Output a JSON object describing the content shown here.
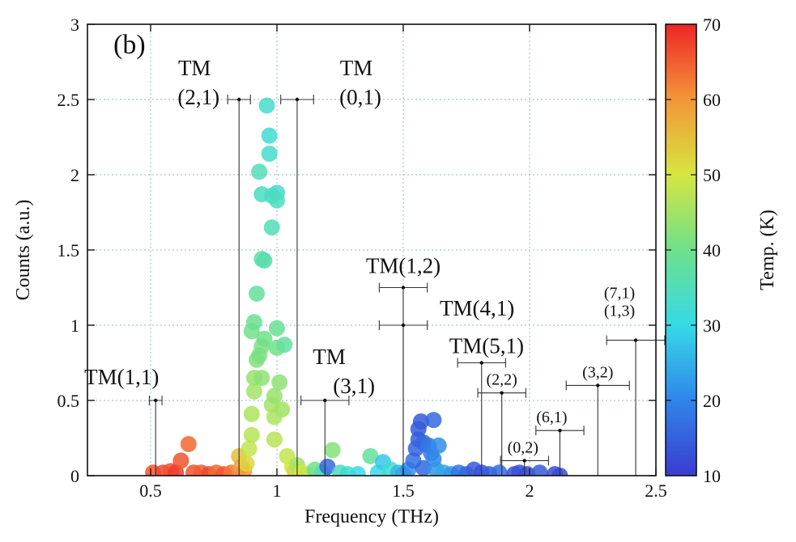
{
  "chart_data": {
    "type": "scatter",
    "panel_label": "(b)",
    "xlabel": "Frequency (THz)",
    "ylabel": "Counts (a.u.)",
    "xlim": [
      0.25,
      2.5
    ],
    "ylim": [
      0,
      3
    ],
    "grid": true,
    "x_ticks": [
      {
        "value": 0.5,
        "label": "0.5"
      },
      {
        "value": 1,
        "label": "1"
      },
      {
        "value": 1.5,
        "label": "1.5"
      },
      {
        "value": 2,
        "label": "2"
      },
      {
        "value": 2.5,
        "label": "2.5"
      }
    ],
    "y_ticks": [
      {
        "value": 0,
        "label": "0"
      },
      {
        "value": 0.5,
        "label": "0.5"
      },
      {
        "value": 1,
        "label": "1"
      },
      {
        "value": 1.5,
        "label": "1.5"
      },
      {
        "value": 2,
        "label": "2"
      },
      {
        "value": 2.5,
        "label": "2.5"
      },
      {
        "value": 3,
        "label": "3"
      }
    ],
    "colorbar": {
      "label": "Temp. (K)",
      "min": 10,
      "max": 70,
      "ticks": [
        {
          "value": 10,
          "label": "10"
        },
        {
          "value": 20,
          "label": "20"
        },
        {
          "value": 30,
          "label": "30"
        },
        {
          "value": 40,
          "label": "40"
        },
        {
          "value": 50,
          "label": "50"
        },
        {
          "value": 60,
          "label": "60"
        },
        {
          "value": 70,
          "label": "70"
        }
      ]
    },
    "points": [
      [
        0.51,
        0.02,
        66
      ],
      [
        0.55,
        0.02,
        67
      ],
      [
        0.58,
        0.03,
        66
      ],
      [
        0.6,
        0.02,
        68
      ],
      [
        0.62,
        0.1,
        66
      ],
      [
        0.65,
        0.21,
        64
      ],
      [
        0.67,
        0.02,
        66
      ],
      [
        0.7,
        0.02,
        65
      ],
      [
        0.73,
        0.01,
        67
      ],
      [
        0.76,
        0.02,
        64
      ],
      [
        0.79,
        0.01,
        66
      ],
      [
        0.82,
        0.02,
        63
      ],
      [
        0.85,
        0.13,
        55
      ],
      [
        0.86,
        0.06,
        58
      ],
      [
        0.87,
        0.03,
        60
      ],
      [
        0.88,
        0.08,
        52
      ],
      [
        0.89,
        0.18,
        48
      ],
      [
        0.9,
        0.27,
        47
      ],
      [
        0.9,
        0.41,
        46
      ],
      [
        0.91,
        0.56,
        45
      ],
      [
        0.91,
        0.65,
        44
      ],
      [
        0.9,
        0.96,
        40
      ],
      [
        0.91,
        1.02,
        39
      ],
      [
        0.92,
        1.21,
        38
      ],
      [
        0.92,
        0.77,
        42
      ],
      [
        0.93,
        0.8,
        41
      ],
      [
        0.94,
        0.65,
        43
      ],
      [
        0.94,
        0.86,
        41
      ],
      [
        0.94,
        1.44,
        37
      ],
      [
        0.93,
        2.02,
        35
      ],
      [
        0.94,
        1.87,
        34
      ],
      [
        0.95,
        0.91,
        40
      ],
      [
        0.95,
        1.43,
        36
      ],
      [
        0.96,
        2.46,
        33
      ],
      [
        0.97,
        2.26,
        32
      ],
      [
        0.97,
        2.14,
        33
      ],
      [
        0.98,
        1.86,
        34
      ],
      [
        0.98,
        1.65,
        35
      ],
      [
        0.98,
        0.47,
        45
      ],
      [
        0.99,
        0.53,
        44
      ],
      [
        0.99,
        0.39,
        46
      ],
      [
        0.99,
        0.24,
        47
      ],
      [
        1.0,
        1.88,
        33
      ],
      [
        1.0,
        1.83,
        34
      ],
      [
        1.0,
        0.98,
        39
      ],
      [
        1.0,
        0.85,
        40
      ],
      [
        1.01,
        0.62,
        43
      ],
      [
        1.02,
        0.44,
        45
      ],
      [
        1.03,
        0.87,
        38
      ],
      [
        1.04,
        0.13,
        48
      ],
      [
        1.06,
        0.06,
        50
      ],
      [
        1.07,
        0.03,
        52
      ],
      [
        1.08,
        0.07,
        45
      ],
      [
        1.1,
        0.02,
        50
      ],
      [
        1.12,
        0.01,
        48
      ],
      [
        1.15,
        0.04,
        40
      ],
      [
        1.18,
        0.02,
        35
      ],
      [
        1.2,
        0.06,
        16
      ],
      [
        1.22,
        0.17,
        42
      ],
      [
        1.25,
        0.02,
        34
      ],
      [
        1.28,
        0.01,
        32
      ],
      [
        1.32,
        0.01,
        30
      ],
      [
        1.37,
        0.13,
        38
      ],
      [
        1.4,
        0.02,
        30
      ],
      [
        1.42,
        0.09,
        28
      ],
      [
        1.45,
        0.04,
        32
      ],
      [
        1.48,
        0.02,
        26
      ],
      [
        1.5,
        0.01,
        24
      ],
      [
        1.52,
        0.04,
        21
      ],
      [
        1.54,
        0.1,
        17
      ],
      [
        1.55,
        0.18,
        15
      ],
      [
        1.56,
        0.24,
        15
      ],
      [
        1.56,
        0.31,
        14
      ],
      [
        1.57,
        0.36,
        14
      ],
      [
        1.58,
        0.22,
        16
      ],
      [
        1.58,
        0.05,
        16
      ],
      [
        1.6,
        0.2,
        18
      ],
      [
        1.61,
        0.15,
        19
      ],
      [
        1.62,
        0.37,
        16
      ],
      [
        1.62,
        0.11,
        20
      ],
      [
        1.63,
        0.04,
        22
      ],
      [
        1.64,
        0.2,
        21
      ],
      [
        1.66,
        0.02,
        24
      ],
      [
        1.69,
        0.01,
        22
      ],
      [
        1.72,
        0.02,
        18
      ],
      [
        1.75,
        0.01,
        16
      ],
      [
        1.78,
        0.04,
        14
      ],
      [
        1.81,
        0.02,
        13
      ],
      [
        1.84,
        0.01,
        14
      ],
      [
        1.88,
        0.02,
        16
      ],
      [
        1.94,
        0.01,
        12
      ],
      [
        1.96,
        0.02,
        13
      ],
      [
        1.99,
        0.01,
        12
      ],
      [
        2.04,
        0.02,
        14
      ],
      [
        2.1,
        0.01,
        12
      ],
      [
        2.12,
        0.0,
        12
      ]
    ],
    "modes": [
      {
        "id": "tm-1-1",
        "label_lines": [
          "TM(1,1)"
        ],
        "x": 0.52,
        "y": 0.5,
        "err": 0.025,
        "small": false
      },
      {
        "id": "tm-2-1",
        "label_lines": [
          "TM",
          "(2,1)"
        ],
        "x": 0.85,
        "y": 2.5,
        "err": 0.045,
        "small": false
      },
      {
        "id": "tm-0-1",
        "label_lines": [
          "TM",
          "(0,1)"
        ],
        "x": 1.08,
        "y": 2.5,
        "err": 0.065,
        "small": false
      },
      {
        "id": "tm-3-1",
        "label_lines": [
          "TM",
          "(3,1)"
        ],
        "x": 1.19,
        "y": 0.5,
        "err": 0.095,
        "small": false
      },
      {
        "id": "tm-1-2",
        "label_lines": [
          "TM(1,2)"
        ],
        "x": 1.5,
        "y": 1.25,
        "err": 0.095,
        "small": false
      },
      {
        "id": "tm-4-1",
        "label_lines": [
          "TM(4,1)"
        ],
        "x": 1.5,
        "y": 1.0,
        "err": 0.095,
        "small": false
      },
      {
        "id": "tm-5-1",
        "label_lines": [
          "TM(5,1)"
        ],
        "x": 1.81,
        "y": 0.75,
        "err": 0.095,
        "small": false
      },
      {
        "id": "mode-2-2",
        "label_lines": [
          "(2,2)"
        ],
        "x": 1.89,
        "y": 0.55,
        "err": 0.095,
        "small": true
      },
      {
        "id": "mode-0-2",
        "label_lines": [
          "(0,2)"
        ],
        "x": 1.98,
        "y": 0.1,
        "err": 0.095,
        "small": true
      },
      {
        "id": "mode-6-1",
        "label_lines": [
          "(6,1)"
        ],
        "x": 2.12,
        "y": 0.3,
        "err": 0.095,
        "small": true
      },
      {
        "id": "mode-3-2",
        "label_lines": [
          "(3,2)"
        ],
        "x": 2.27,
        "y": 0.6,
        "err": 0.125,
        "small": true
      },
      {
        "id": "mode-7-1-1-3",
        "label_lines": [
          "(7,1)",
          "(1,3)"
        ],
        "x": 2.42,
        "y": 0.9,
        "err": 0.115,
        "small": true
      }
    ]
  }
}
